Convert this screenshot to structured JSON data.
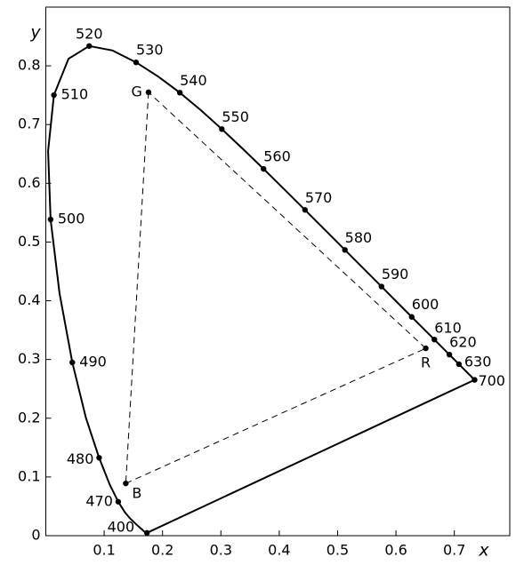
{
  "chart_data": {
    "type": "chromaticity",
    "x_label": "x",
    "y_label": "y",
    "xlim": [
      0,
      0.795
    ],
    "ylim": [
      0,
      0.9
    ],
    "xticks": [
      0.1,
      0.2,
      0.3,
      0.4,
      0.5,
      0.6,
      0.7
    ],
    "yticks": [
      0,
      0.1,
      0.2,
      0.3,
      0.4,
      0.5,
      0.6,
      0.7,
      0.8
    ],
    "color": "#000000",
    "locus": {
      "x": [
        0.1733,
        0.1726,
        0.1714,
        0.1689,
        0.1644,
        0.1566,
        0.144,
        0.1355,
        0.1241,
        0.1096,
        0.0913,
        0.0687,
        0.0454,
        0.0235,
        0.0082,
        0.0039,
        0.0139,
        0.0389,
        0.0743,
        0.1142,
        0.1547,
        0.1929,
        0.2296,
        0.2658,
        0.3016,
        0.3373,
        0.3731,
        0.4087,
        0.4441,
        0.4788,
        0.5125,
        0.5448,
        0.5752,
        0.6029,
        0.627,
        0.6482,
        0.6658,
        0.6801,
        0.6915,
        0.7006,
        0.7079,
        0.7347
      ],
      "y": [
        0.0048,
        0.0048,
        0.0051,
        0.0069,
        0.0109,
        0.0177,
        0.0297,
        0.0399,
        0.0578,
        0.0868,
        0.1327,
        0.2007,
        0.295,
        0.4127,
        0.5384,
        0.6548,
        0.7502,
        0.812,
        0.8338,
        0.8262,
        0.8059,
        0.7816,
        0.7543,
        0.7243,
        0.6923,
        0.6589,
        0.6245,
        0.5896,
        0.5547,
        0.5202,
        0.4866,
        0.4544,
        0.4242,
        0.3965,
        0.3725,
        0.3514,
        0.334,
        0.3197,
        0.3083,
        0.2993,
        0.292,
        0.2653
      ],
      "labels": [
        "400",
        null,
        null,
        null,
        null,
        null,
        null,
        null,
        "470",
        null,
        "480",
        null,
        "490",
        null,
        "500",
        null,
        "510",
        null,
        "520",
        null,
        "530",
        null,
        "540",
        null,
        "550",
        null,
        "560",
        null,
        "570",
        null,
        "580",
        null,
        "590",
        null,
        "600",
        null,
        "610",
        null,
        "620",
        null,
        "630",
        "700"
      ]
    },
    "primaries": [
      {
        "name": "R",
        "x": 0.651,
        "y": 0.319
      },
      {
        "name": "G",
        "x": 0.176,
        "y": 0.755
      },
      {
        "name": "B",
        "x": 0.137,
        "y": 0.089
      }
    ]
  }
}
